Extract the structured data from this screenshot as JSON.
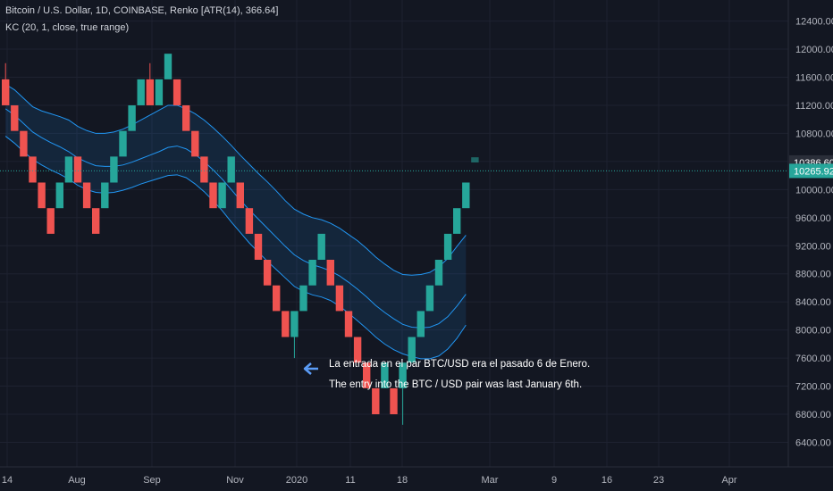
{
  "header": {
    "title": "Bitcoin / U.S. Dollar, 1D, COINBASE, Renko [ATR(14), 366.64]",
    "indicator": "KC (20, 1, close, true range)"
  },
  "annotations": {
    "es": "La entrada en el par BTC/USD era el pasado 6 de Enero.",
    "en": "The entry into the BTC / USD pair was last January 6th."
  },
  "colors": {
    "background": "#131722",
    "grid": "#1e2230",
    "up": "#26a69a",
    "down": "#ef5350",
    "channel": "#2196f3",
    "channel_fill": "#2196f3",
    "price_line": "#26a69a",
    "axis_text": "#b2b5be",
    "annotation_arrow": "#5b9cf6"
  },
  "chart_data": {
    "type": "renko",
    "symbol": "BTCUSD",
    "exchange": "COINBASE",
    "timeframe": "1D",
    "box_size": 366.64,
    "y_ticks": [
      6400,
      6800,
      7200,
      7600,
      8000,
      8400,
      8800,
      9200,
      9600,
      10000,
      10400,
      10800,
      11200,
      11600,
      12000,
      12400
    ],
    "ylim": [
      6050,
      12700
    ],
    "x_ticks": [
      "14",
      "Aug",
      "Sep",
      "Nov",
      "2020",
      "11",
      "18",
      "Mar",
      "9",
      "16",
      "23",
      "Apr"
    ],
    "price_labels": [
      {
        "value": 10386.6,
        "text": "10386.60",
        "style": "dark"
      },
      {
        "value": 10265.92,
        "text": "10265.92",
        "style": "green"
      }
    ],
    "current_price": 10265.92,
    "bricks": [
      {
        "dir": "down",
        "top": 11570,
        "bottom": 11200,
        "high": 11800,
        "low": 11200
      },
      {
        "dir": "down",
        "top": 11200,
        "bottom": 10835,
        "high": 11200,
        "low": 10835
      },
      {
        "dir": "down",
        "top": 10835,
        "bottom": 10470,
        "high": 10835,
        "low": 10470
      },
      {
        "dir": "down",
        "top": 10470,
        "bottom": 10100,
        "high": 10470,
        "low": 10100
      },
      {
        "dir": "down",
        "top": 10100,
        "bottom": 9735,
        "high": 10100,
        "low": 9735
      },
      {
        "dir": "down",
        "top": 9735,
        "bottom": 9370,
        "high": 9735,
        "low": 9370
      },
      {
        "dir": "up",
        "top": 10100,
        "bottom": 9735,
        "high": 10100,
        "low": 9735
      },
      {
        "dir": "up",
        "top": 10470,
        "bottom": 10100,
        "high": 10470,
        "low": 10100
      },
      {
        "dir": "down",
        "top": 10470,
        "bottom": 10100,
        "high": 10470,
        "low": 10100
      },
      {
        "dir": "down",
        "top": 10100,
        "bottom": 9735,
        "high": 10100,
        "low": 9735
      },
      {
        "dir": "down",
        "top": 9735,
        "bottom": 9370,
        "high": 9735,
        "low": 9370
      },
      {
        "dir": "up",
        "top": 10100,
        "bottom": 9735,
        "high": 10100,
        "low": 9735
      },
      {
        "dir": "up",
        "top": 10470,
        "bottom": 10100,
        "high": 10470,
        "low": 10100
      },
      {
        "dir": "up",
        "top": 10835,
        "bottom": 10470,
        "high": 10835,
        "low": 10470
      },
      {
        "dir": "up",
        "top": 11200,
        "bottom": 10835,
        "high": 11200,
        "low": 10835
      },
      {
        "dir": "up",
        "top": 11570,
        "bottom": 11200,
        "high": 11570,
        "low": 11200
      },
      {
        "dir": "down",
        "top": 11570,
        "bottom": 11200,
        "high": 11800,
        "low": 11200
      },
      {
        "dir": "up",
        "top": 11570,
        "bottom": 11200,
        "high": 11570,
        "low": 11200
      },
      {
        "dir": "up",
        "top": 11935,
        "bottom": 11570,
        "high": 11935,
        "low": 11570
      },
      {
        "dir": "down",
        "top": 11570,
        "bottom": 11200,
        "high": 11570,
        "low": 11200
      },
      {
        "dir": "down",
        "top": 11200,
        "bottom": 10835,
        "high": 11200,
        "low": 10835
      },
      {
        "dir": "down",
        "top": 10835,
        "bottom": 10470,
        "high": 10835,
        "low": 10470
      },
      {
        "dir": "down",
        "top": 10470,
        "bottom": 10100,
        "high": 10470,
        "low": 10100
      },
      {
        "dir": "down",
        "top": 10100,
        "bottom": 9735,
        "high": 10100,
        "low": 9735
      },
      {
        "dir": "up",
        "top": 10100,
        "bottom": 9735,
        "high": 10100,
        "low": 9735
      },
      {
        "dir": "up",
        "top": 10470,
        "bottom": 10100,
        "high": 10470,
        "low": 10100
      },
      {
        "dir": "down",
        "top": 10100,
        "bottom": 9735,
        "high": 10100,
        "low": 9735
      },
      {
        "dir": "down",
        "top": 9735,
        "bottom": 9370,
        "high": 9735,
        "low": 9370
      },
      {
        "dir": "down",
        "top": 9370,
        "bottom": 9000,
        "high": 9370,
        "low": 9000
      },
      {
        "dir": "down",
        "top": 9000,
        "bottom": 8635,
        "high": 9000,
        "low": 8635
      },
      {
        "dir": "down",
        "top": 8635,
        "bottom": 8270,
        "high": 8635,
        "low": 8270
      },
      {
        "dir": "down",
        "top": 8270,
        "bottom": 7900,
        "high": 8270,
        "low": 7900
      },
      {
        "dir": "up",
        "top": 8270,
        "bottom": 7900,
        "high": 8270,
        "low": 7600
      },
      {
        "dir": "up",
        "top": 8635,
        "bottom": 8270,
        "high": 8635,
        "low": 8270
      },
      {
        "dir": "up",
        "top": 9000,
        "bottom": 8635,
        "high": 9000,
        "low": 8635
      },
      {
        "dir": "up",
        "top": 9370,
        "bottom": 9000,
        "high": 9370,
        "low": 9000
      },
      {
        "dir": "down",
        "top": 9000,
        "bottom": 8635,
        "high": 9000,
        "low": 8635
      },
      {
        "dir": "down",
        "top": 8635,
        "bottom": 8270,
        "high": 8635,
        "low": 8270
      },
      {
        "dir": "down",
        "top": 8270,
        "bottom": 7900,
        "high": 8270,
        "low": 7900
      },
      {
        "dir": "down",
        "top": 7900,
        "bottom": 7535,
        "high": 7900,
        "low": 7535
      },
      {
        "dir": "down",
        "top": 7535,
        "bottom": 7170,
        "high": 7535,
        "low": 7170
      },
      {
        "dir": "down",
        "top": 7170,
        "bottom": 6800,
        "high": 7170,
        "low": 6800
      },
      {
        "dir": "up",
        "top": 7535,
        "bottom": 7170,
        "high": 7535,
        "low": 7170
      },
      {
        "dir": "down",
        "top": 7170,
        "bottom": 6800,
        "high": 7170,
        "low": 6800
      },
      {
        "dir": "up",
        "top": 7535,
        "bottom": 7170,
        "high": 7535,
        "low": 6650
      },
      {
        "dir": "up",
        "top": 7900,
        "bottom": 7535,
        "high": 7900,
        "low": 7535
      },
      {
        "dir": "up",
        "top": 8270,
        "bottom": 7900,
        "high": 8270,
        "low": 7900
      },
      {
        "dir": "up",
        "top": 8635,
        "bottom": 8270,
        "high": 8635,
        "low": 8270
      },
      {
        "dir": "up",
        "top": 9000,
        "bottom": 8635,
        "high": 9000,
        "low": 8635
      },
      {
        "dir": "up",
        "top": 9370,
        "bottom": 9000,
        "high": 9370,
        "low": 9000
      },
      {
        "dir": "up",
        "top": 9735,
        "bottom": 9370,
        "high": 9735,
        "low": 9370
      },
      {
        "dir": "up",
        "top": 10100,
        "bottom": 9735,
        "high": 10100,
        "low": 9735
      }
    ],
    "pending_brick": {
      "dir": "up",
      "top": 10460,
      "bottom": 10386.6
    },
    "keltner": {
      "upper": [
        11500,
        11420,
        11300,
        11180,
        11120,
        11080,
        11040,
        10990,
        10900,
        10840,
        10800,
        10800,
        10820,
        10860,
        10920,
        10990,
        11060,
        11130,
        11200,
        11200,
        11150,
        11080,
        10990,
        10880,
        10760,
        10630,
        10490,
        10360,
        10230,
        10110,
        9980,
        9840,
        9720,
        9650,
        9600,
        9570,
        9520,
        9450,
        9360,
        9270,
        9160,
        9040,
        8940,
        8850,
        8790,
        8780,
        8790,
        8820,
        8900,
        9020,
        9190,
        9350
      ],
      "middle": [
        11150,
        11060,
        10940,
        10820,
        10740,
        10670,
        10610,
        10540,
        10450,
        10390,
        10340,
        10330,
        10330,
        10350,
        10390,
        10440,
        10490,
        10540,
        10600,
        10620,
        10580,
        10500,
        10400,
        10280,
        10150,
        10000,
        9850,
        9710,
        9580,
        9450,
        9320,
        9190,
        9070,
        8990,
        8930,
        8890,
        8840,
        8770,
        8680,
        8580,
        8470,
        8350,
        8250,
        8160,
        8080,
        8040,
        8030,
        8040,
        8090,
        8190,
        8340,
        8510
      ],
      "lower": [
        10760,
        10660,
        10540,
        10430,
        10350,
        10280,
        10220,
        10150,
        10060,
        10000,
        9960,
        9950,
        9960,
        9990,
        10030,
        10080,
        10120,
        10160,
        10200,
        10210,
        10170,
        10080,
        9970,
        9840,
        9700,
        9540,
        9390,
        9240,
        9110,
        8980,
        8860,
        8740,
        8620,
        8550,
        8500,
        8470,
        8420,
        8340,
        8240,
        8130,
        8020,
        7900,
        7800,
        7720,
        7660,
        7620,
        7590,
        7590,
        7630,
        7730,
        7880,
        8070
      ]
    }
  }
}
